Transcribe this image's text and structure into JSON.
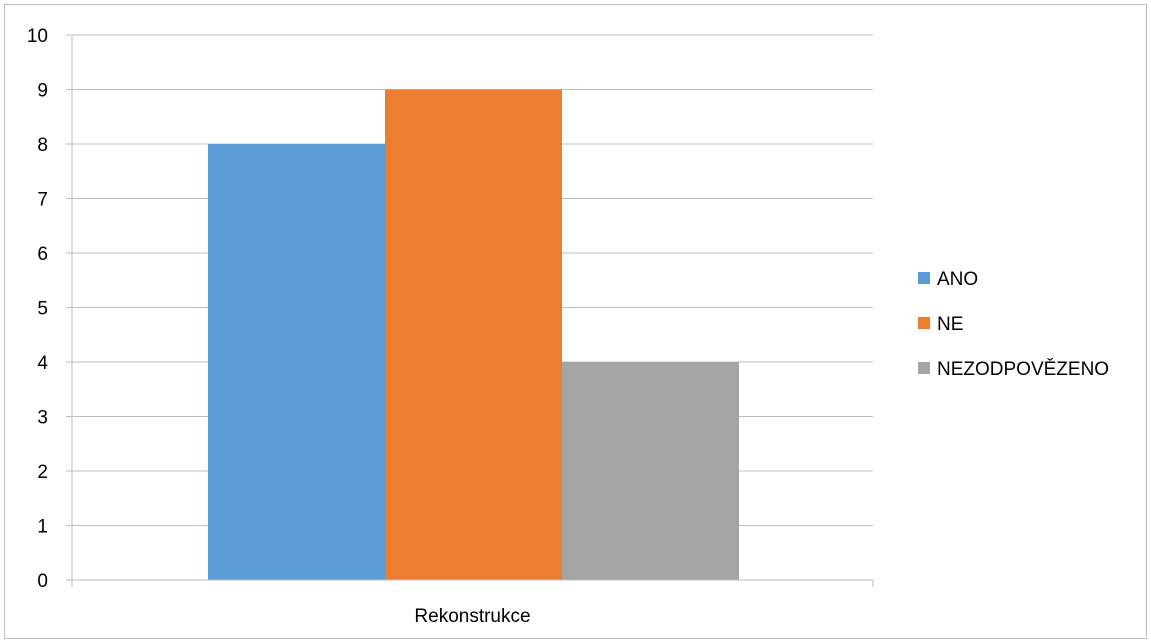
{
  "chart_data": {
    "type": "bar",
    "categories": [
      "Rekonstrukce"
    ],
    "series": [
      {
        "name": "ANO",
        "values": [
          8
        ],
        "color": "#5B9BD5"
      },
      {
        "name": "NE",
        "values": [
          9
        ],
        "color": "#ED7D31"
      },
      {
        "name": "NEZODPOVĚZENO",
        "values": [
          4
        ],
        "color": "#A5A5A5"
      }
    ],
    "ylim": [
      0,
      10
    ],
    "yticks": [
      "0",
      "1",
      "2",
      "3",
      "4",
      "5",
      "6",
      "7",
      "8",
      "9",
      "10"
    ],
    "grid": true,
    "legend_position": "right",
    "title": "",
    "xlabel": "",
    "ylabel": ""
  }
}
